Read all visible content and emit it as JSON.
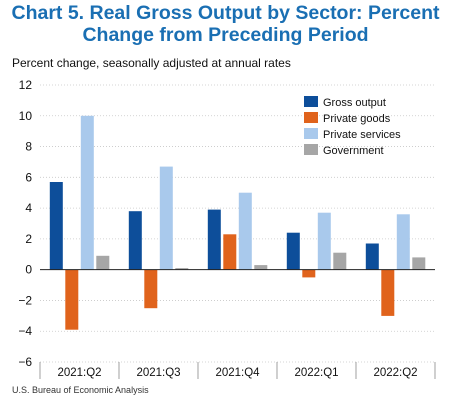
{
  "title_line1": "Chart 5. Real Gross Output by Sector: Percent",
  "title_line2": "Change from Preceding Period",
  "subtitle": "Percent change, seasonally adjusted at annual rates",
  "source": "U.S. Bureau of Economic Analysis",
  "chart_data": {
    "type": "bar",
    "title": "Chart 5. Real Gross Output by Sector: Percent Change from Preceding Period",
    "ylabel": "Percent change, seasonally adjusted at annual rates",
    "xlabel": "",
    "categories": [
      "2021:Q2",
      "2021:Q3",
      "2021:Q4",
      "2022:Q1",
      "2022:Q2"
    ],
    "ylim": [
      -6,
      12
    ],
    "yticks": [
      12,
      10,
      8,
      6,
      4,
      2,
      0,
      -2,
      -4,
      -6
    ],
    "legend_position": "top-right",
    "series": [
      {
        "name": "Gross output",
        "color": "#0d4e9a",
        "values": [
          5.7,
          3.8,
          3.9,
          2.4,
          1.7
        ]
      },
      {
        "name": "Private goods",
        "color": "#e0631c",
        "values": [
          -3.9,
          -2.5,
          2.3,
          -0.5,
          -3.0
        ]
      },
      {
        "name": "Private services",
        "color": "#a9c9ec",
        "values": [
          10.0,
          6.7,
          5.0,
          3.7,
          3.6
        ]
      },
      {
        "name": "Government",
        "color": "#a6a6a6",
        "values": [
          0.9,
          0.1,
          0.3,
          1.1,
          0.8
        ]
      }
    ]
  }
}
